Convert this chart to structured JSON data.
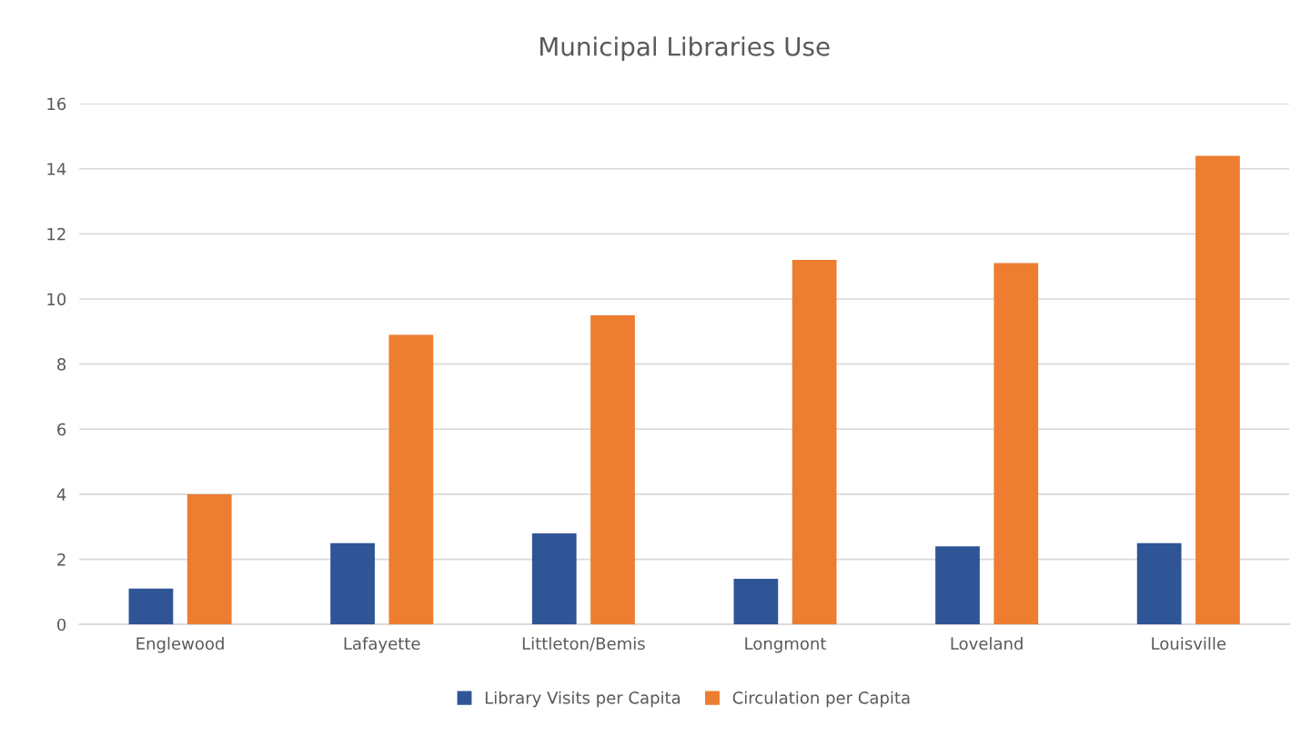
{
  "chart_data": {
    "type": "bar",
    "title": "Municipal Libraries Use",
    "categories": [
      "Englewood",
      "Lafayette",
      "Littleton/Bemis",
      "Longmont",
      "Loveland",
      "Louisville"
    ],
    "series": [
      {
        "name": "Library Visits per Capita",
        "color": "#2f5597",
        "values": [
          1.1,
          2.5,
          2.8,
          1.4,
          2.4,
          2.5
        ]
      },
      {
        "name": "Circulation per Capita",
        "color": "#ed7d31",
        "values": [
          4.0,
          8.9,
          9.5,
          11.2,
          11.1,
          14.4
        ]
      }
    ],
    "ylim": [
      0,
      16
    ],
    "yticks": [
      0,
      2,
      4,
      6,
      8,
      10,
      12,
      14,
      16
    ],
    "grid": "y",
    "legend": "bottom"
  }
}
